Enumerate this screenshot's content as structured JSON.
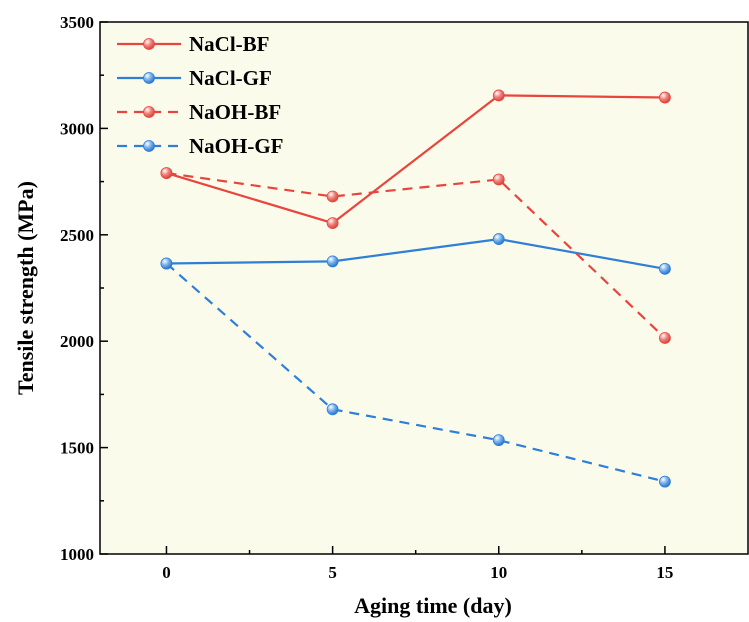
{
  "chart_data": {
    "type": "line",
    "xlabel": "Aging time (day)",
    "ylabel": "Tensile strength (MPa)",
    "xlim": [
      -2,
      17.5
    ],
    "ylim": [
      1000,
      3500
    ],
    "x": [
      0,
      5,
      10,
      15
    ],
    "x_ticks": [
      "0",
      "5",
      "10",
      "15"
    ],
    "y_ticks": [
      "1000",
      "1500",
      "2000",
      "2500",
      "3000",
      "3500"
    ],
    "background_color": "#fbfbec",
    "grid": false,
    "legend_position": "top-left",
    "series": [
      {
        "name": "NaCl-BF",
        "values": [
          2790,
          2555,
          3155,
          3145
        ],
        "color": "#e8453c",
        "dash": "solid"
      },
      {
        "name": "NaCl-GF",
        "values": [
          2365,
          2375,
          2480,
          2340
        ],
        "color": "#2f7fd6",
        "dash": "solid"
      },
      {
        "name": "NaOH-BF",
        "values": [
          2790,
          2680,
          2760,
          2015
        ],
        "color": "#e8453c",
        "dash": "dashed"
      },
      {
        "name": "NaOH-GF",
        "values": [
          2365,
          1680,
          1535,
          1340
        ],
        "color": "#2f7fd6",
        "dash": "dashed"
      }
    ]
  }
}
